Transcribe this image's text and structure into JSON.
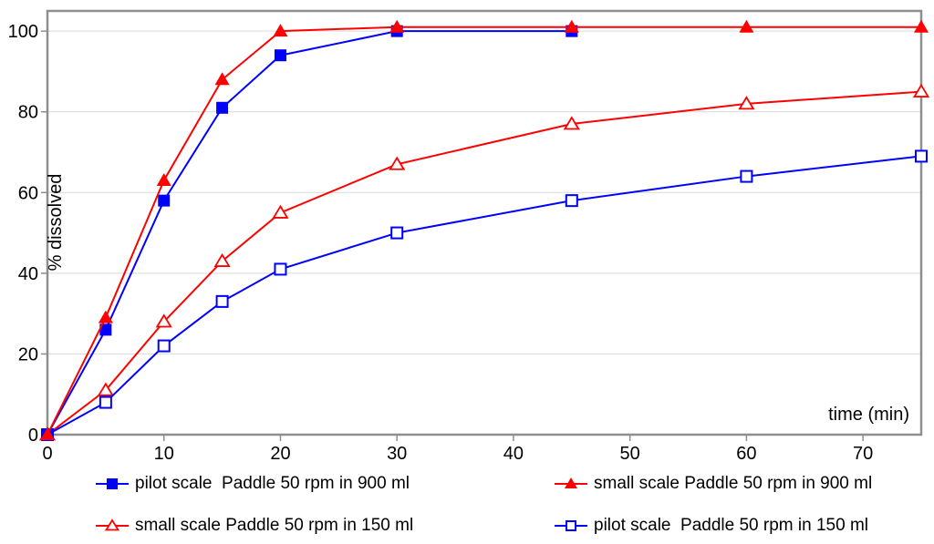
{
  "chart_data": {
    "type": "line",
    "title": "",
    "xlabel": "time (min)",
    "ylabel": "% dissolved",
    "xlim": [
      0,
      75
    ],
    "ylim": [
      0,
      105
    ],
    "xticks": [
      0,
      10,
      20,
      30,
      40,
      50,
      60,
      70
    ],
    "yticks": [
      0,
      20,
      40,
      60,
      80,
      100
    ],
    "grid": "horizontal gridlines only",
    "legend_position": "bottom, two columns by two rows",
    "series": [
      {
        "name": "pilot scale  Paddle 50 rpm in 900 ml",
        "color": "#0000ff",
        "marker": "filled-square",
        "x": [
          0,
          5,
          10,
          15,
          20,
          30,
          45
        ],
        "y": [
          0,
          26,
          58,
          81,
          94,
          100,
          100
        ]
      },
      {
        "name": "small scale Paddle 50 rpm in 900 ml",
        "color": "#ff0000",
        "marker": "filled-triangle",
        "x": [
          0,
          5,
          10,
          15,
          20,
          30,
          45,
          60,
          75
        ],
        "y": [
          0,
          29,
          63,
          88,
          100,
          101,
          101,
          101,
          101
        ]
      },
      {
        "name": "small scale Paddle 50 rpm in 150 ml",
        "color": "#ff0000",
        "marker": "open-triangle",
        "x": [
          0,
          5,
          10,
          15,
          20,
          30,
          45,
          60,
          75
        ],
        "y": [
          0,
          11,
          28,
          43,
          55,
          67,
          77,
          82,
          85
        ]
      },
      {
        "name": "pilot scale  Paddle 50 rpm in 150 ml",
        "color": "#0000ff",
        "marker": "open-square",
        "x": [
          0,
          5,
          10,
          15,
          20,
          30,
          45,
          60,
          75
        ],
        "y": [
          0,
          8,
          22,
          33,
          41,
          50,
          58,
          64,
          69
        ]
      }
    ]
  },
  "colors": {
    "blue": "#0000ff",
    "red": "#ff0000",
    "gridline": "#d9d9d9",
    "border": "#8e8e8e",
    "text": "#000000",
    "background": "#ffffff"
  }
}
